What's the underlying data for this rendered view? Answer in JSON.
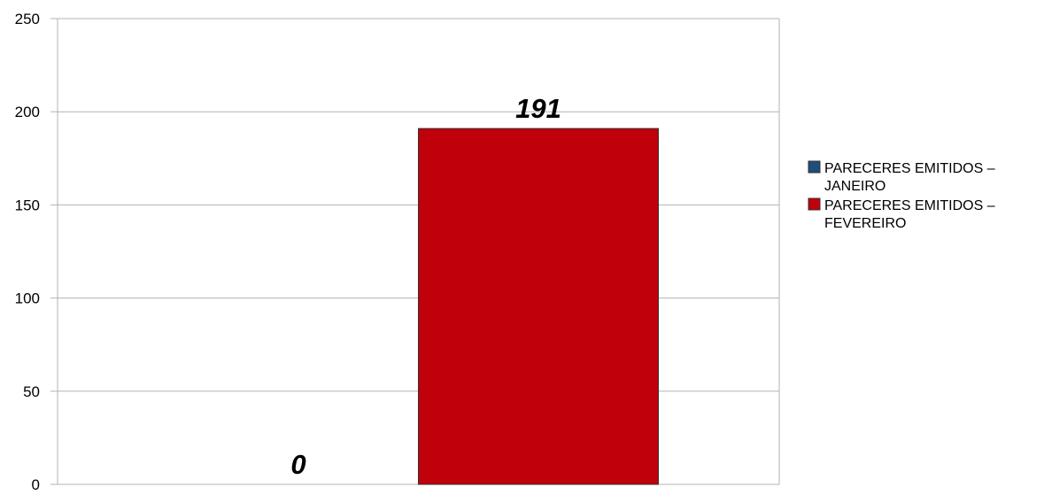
{
  "chart_data": {
    "type": "bar",
    "title": "",
    "xlabel": "",
    "ylabel": "",
    "ylim": [
      0,
      250
    ],
    "yticks": [
      0,
      50,
      100,
      150,
      200,
      250
    ],
    "grid": true,
    "legend_position": "right",
    "series": [
      {
        "name": "PARECERES EMITIDOS – JANEIRO",
        "legend_lines": [
          "PARECERES EMITIDOS –",
          "JANEIRO"
        ],
        "value": 0,
        "data_label": "0",
        "color": "#1f4e79"
      },
      {
        "name": "PARECERES EMITIDOS – FEVEREIRO",
        "legend_lines": [
          "PARECERES EMITIDOS –",
          "FEVEREIRO"
        ],
        "value": 191,
        "data_label": "191",
        "color": "#c0000b"
      }
    ]
  }
}
